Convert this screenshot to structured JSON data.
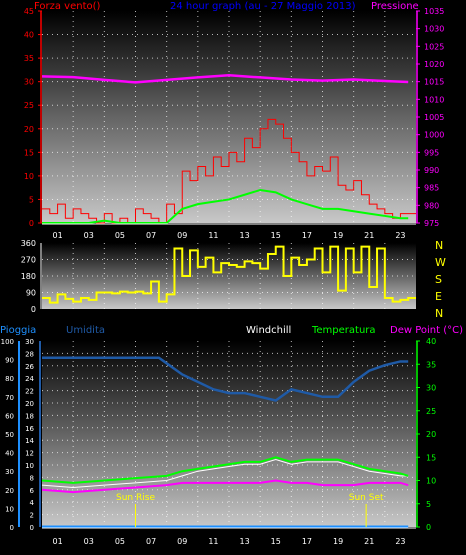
{
  "colors": {
    "wind": "#ff0000",
    "wind_gust": "#ff0000",
    "wind_avg": "#00ff00",
    "pressure": "#ff00ff",
    "direction": "#ffff00",
    "humidity": "#1f5aa6",
    "windchill": "#ffffff",
    "temperature": "#00ff00",
    "dewpoint": "#ff00ff",
    "rain": "#1e90ff",
    "axis_left": "#ff0000",
    "axis_right": "#ff00ff",
    "axis_rain": "#1e90ff",
    "axis_temp": "#00ff00",
    "title": "#0000ff",
    "sun": "#ffff00"
  },
  "header": {
    "wind_label": "Forza vento()",
    "title": "24 hour graph (au - 27 Maggio 2013)",
    "pressure_label": "Pressione"
  },
  "dir_labels": [
    "N",
    "W",
    "S",
    "E",
    "N"
  ],
  "bottom_header": {
    "rain_label": "Pioggia",
    "humidity_label": "Umidita",
    "windchill_label": "Windchill",
    "temperature_label": "Temperatura",
    "dewpoint_label": "Dew Point (°C)"
  },
  "sun": {
    "rise_label": "Sun Rise",
    "set_label": "Sun Set",
    "rise_hour": 6.0,
    "set_hour": 20.8
  },
  "chart_data": [
    {
      "type": "line",
      "title": "24 hour graph (au - 27 Maggio 2013)",
      "x_ticks": [
        "01",
        "03",
        "05",
        "07",
        "09",
        "11",
        "13",
        "15",
        "17",
        "19",
        "21",
        "23"
      ],
      "left_axis": {
        "label": "Forza vento()",
        "ylim": [
          0,
          45
        ],
        "ticks": [
          0,
          5,
          10,
          15,
          20,
          25,
          30,
          35,
          40,
          45
        ]
      },
      "right_axis": {
        "label": "Pressione",
        "ylim": [
          975,
          1035
        ],
        "ticks": [
          975,
          980,
          985,
          990,
          995,
          1000,
          1005,
          1010,
          1015,
          1020,
          1025,
          1030,
          1035
        ]
      },
      "series": [
        {
          "name": "Forza vento()",
          "key": "wind_gust",
          "hours": [
            0,
            0.5,
            1,
            1.5,
            2,
            2.5,
            3,
            3.5,
            4,
            4.5,
            5,
            5.5,
            6,
            6.5,
            7,
            7.5,
            8,
            8.5,
            9,
            9.5,
            10,
            10.5,
            11,
            11.5,
            12,
            12.5,
            13,
            13.5,
            14,
            14.5,
            15,
            15.5,
            16,
            16.5,
            17,
            17.5,
            18,
            18.5,
            19,
            19.5,
            20,
            20.5,
            21,
            21.5,
            22,
            22.5,
            23,
            23.5
          ],
          "values": [
            3,
            2,
            4,
            1,
            3,
            2,
            1,
            0,
            2,
            0,
            1,
            0,
            3,
            2,
            1,
            0,
            4,
            2,
            11,
            9,
            12,
            10,
            14,
            12,
            15,
            13,
            18,
            16,
            20,
            22,
            21,
            18,
            15,
            13,
            10,
            12,
            11,
            14,
            8,
            7,
            9,
            6,
            4,
            3,
            2,
            1,
            2,
            2
          ]
        },
        {
          "name": "",
          "key": "wind_avg",
          "hours": [
            0,
            1,
            2,
            3,
            4,
            5,
            6,
            7,
            8,
            9,
            10,
            11,
            12,
            13,
            14,
            15,
            16,
            17,
            18,
            19,
            20,
            21,
            22,
            23,
            23.5
          ],
          "values": [
            0,
            0,
            0,
            0,
            0.5,
            0,
            0,
            0,
            0,
            3,
            4,
            4.5,
            5,
            6,
            7,
            6.5,
            5,
            4,
            3,
            3,
            2.5,
            2,
            1.5,
            1,
            1
          ]
        },
        {
          "name": "Pressione",
          "key": "pressure",
          "hours": [
            0,
            2,
            4,
            6,
            8,
            10,
            12,
            14,
            16,
            18,
            20,
            22,
            23.5
          ],
          "values": [
            1016.5,
            1016.3,
            1015.5,
            1014.8,
            1015.5,
            1016.2,
            1016.8,
            1016.2,
            1015.6,
            1015.3,
            1015.6,
            1015.2,
            1014.9
          ]
        }
      ]
    },
    {
      "type": "line",
      "ylim": [
        0,
        360
      ],
      "ticks": [
        0,
        90,
        180,
        270,
        360
      ],
      "series": [
        {
          "name": "",
          "key": "direction",
          "hours": [
            0,
            0.5,
            1,
            1.5,
            2,
            2.5,
            3,
            3.5,
            4,
            4.5,
            5,
            5.5,
            6,
            6.5,
            7,
            7.5,
            8,
            8.5,
            9,
            9.5,
            10,
            10.5,
            11,
            11.5,
            12,
            12.5,
            13,
            13.5,
            14,
            14.5,
            15,
            15.5,
            16,
            16.5,
            17,
            17.5,
            18,
            18.5,
            19,
            19.5,
            20,
            20.5,
            21,
            21.5,
            22,
            22.5,
            23,
            23.5
          ],
          "values": [
            60,
            35,
            80,
            55,
            40,
            60,
            50,
            90,
            90,
            85,
            95,
            90,
            95,
            85,
            150,
            40,
            80,
            330,
            180,
            320,
            230,
            280,
            200,
            250,
            240,
            230,
            260,
            250,
            220,
            300,
            340,
            180,
            280,
            240,
            270,
            330,
            200,
            340,
            100,
            330,
            200,
            340,
            120,
            330,
            60,
            40,
            50,
            60
          ]
        }
      ]
    },
    {
      "type": "line",
      "x_ticks": [
        "01",
        "03",
        "05",
        "07",
        "09",
        "11",
        "13",
        "15",
        "17",
        "19",
        "21",
        "23"
      ],
      "humidity_axis": {
        "label": "Umidita",
        "ylim": [
          0,
          100
        ],
        "ticks": [
          0,
          10,
          20,
          30,
          40,
          50,
          60,
          70,
          80,
          90,
          100
        ]
      },
      "rain_axis": {
        "label": "Pioggia",
        "ylim": [
          0,
          30
        ],
        "ticks": [
          0,
          2,
          4,
          6,
          8,
          10,
          12,
          14,
          16,
          18,
          20,
          22,
          24,
          26,
          28,
          30
        ]
      },
      "temp_axis": {
        "label": "Dew Point (°C)",
        "ylim": [
          0,
          40
        ],
        "ticks": [
          0,
          5,
          10,
          15,
          20,
          25,
          30,
          35,
          40
        ]
      },
      "series": [
        {
          "name": "Umidita",
          "key": "humidity",
          "hours": [
            0,
            2,
            4,
            6,
            7.5,
            8,
            9,
            10,
            11,
            12,
            13,
            14,
            15,
            16,
            17,
            18,
            19,
            20,
            21,
            22,
            23,
            23.5
          ],
          "values": [
            91,
            91,
            91,
            91,
            91,
            88,
            82,
            78,
            74,
            72,
            72,
            70,
            68,
            74,
            72,
            70,
            70,
            78,
            84,
            87,
            89,
            89
          ]
        },
        {
          "name": "Windchill",
          "key": "windchill",
          "hours": [
            0,
            2,
            4,
            6,
            8,
            9,
            10,
            11,
            12,
            13,
            14,
            15,
            16,
            17,
            18,
            19,
            20,
            21,
            22,
            23,
            23.5
          ],
          "values": [
            9,
            8.5,
            9,
            9.5,
            10,
            11,
            12,
            12.5,
            13,
            13.5,
            13.5,
            14.5,
            13.5,
            14,
            14,
            14,
            13,
            12,
            11.5,
            11,
            11
          ]
        },
        {
          "name": "Temperatura",
          "key": "temperature",
          "hours": [
            0,
            2,
            4,
            6,
            8,
            9,
            10,
            11,
            12,
            13,
            14,
            15,
            16,
            17,
            18,
            19,
            20,
            21,
            22,
            23,
            23.5
          ],
          "values": [
            10,
            9.5,
            10,
            10.5,
            11,
            12,
            12.5,
            13,
            13.5,
            14,
            14,
            15,
            14,
            14.5,
            14.5,
            14.5,
            13.5,
            12.5,
            12,
            11.5,
            11
          ]
        },
        {
          "name": "Dew Point (°C)",
          "key": "dewpoint",
          "hours": [
            0,
            2,
            4,
            6,
            8,
            9,
            10,
            11,
            12,
            13,
            14,
            15,
            16,
            17,
            18,
            19,
            20,
            21,
            22,
            23,
            23.5
          ],
          "values": [
            8,
            7.5,
            8,
            8.5,
            9,
            9.5,
            9.5,
            9.5,
            9.5,
            9.5,
            9.5,
            10,
            9.5,
            9.5,
            9,
            9,
            9,
            9.5,
            9.5,
            9.5,
            9
          ]
        },
        {
          "name": "Pioggia",
          "key": "rain",
          "hours": [
            0,
            23.5
          ],
          "values": [
            0,
            0
          ]
        }
      ]
    }
  ]
}
